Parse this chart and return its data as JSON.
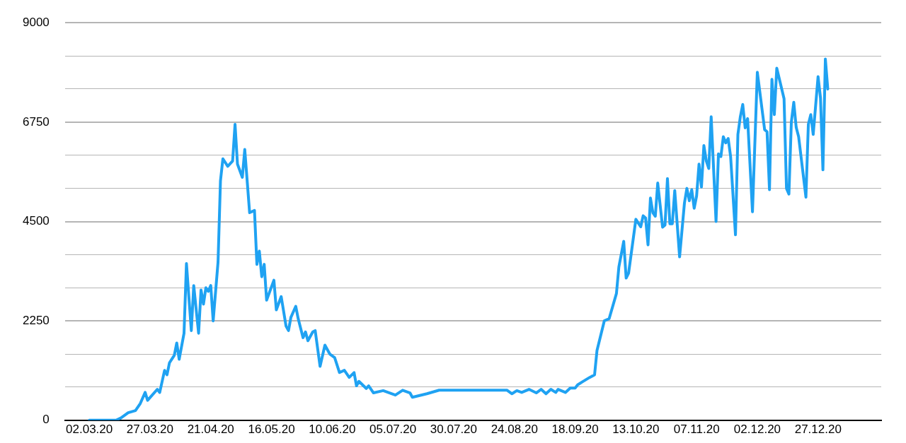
{
  "chart_data": {
    "type": "line",
    "x": [
      "2020-03-02",
      "2020-03-13",
      "2020-03-15",
      "2020-03-18",
      "2020-03-21",
      "2020-03-23",
      "2020-03-25",
      "2020-03-26",
      "2020-03-30",
      "2020-03-31",
      "2020-04-02",
      "2020-04-03",
      "2020-04-04",
      "2020-04-06",
      "2020-04-07",
      "2020-04-08",
      "2020-04-10",
      "2020-04-11",
      "2020-04-13",
      "2020-04-14",
      "2020-04-16",
      "2020-04-17",
      "2020-04-18",
      "2020-04-19",
      "2020-04-20",
      "2020-04-21",
      "2020-04-22",
      "2020-04-24",
      "2020-04-25",
      "2020-04-26",
      "2020-04-28",
      "2020-04-30",
      "2020-05-01",
      "2020-05-02",
      "2020-05-04",
      "2020-05-05",
      "2020-05-07",
      "2020-05-09",
      "2020-05-10",
      "2020-05-11",
      "2020-05-12",
      "2020-05-13",
      "2020-05-14",
      "2020-05-17",
      "2020-05-18",
      "2020-05-20",
      "2020-05-22",
      "2020-05-23",
      "2020-05-24",
      "2020-05-26",
      "2020-05-27",
      "2020-05-29",
      "2020-05-30",
      "2020-05-31",
      "2020-06-02",
      "2020-06-03",
      "2020-06-05",
      "2020-06-07",
      "2020-06-09",
      "2020-06-11",
      "2020-06-13",
      "2020-06-15",
      "2020-06-17",
      "2020-06-19",
      "2020-06-20",
      "2020-06-21",
      "2020-06-24",
      "2020-06-25",
      "2020-06-27",
      "2020-07-01",
      "2020-07-06",
      "2020-07-09",
      "2020-07-12",
      "2020-07-13",
      "2020-07-19",
      "2020-07-24",
      "2020-08-01",
      "2020-08-21",
      "2020-08-23",
      "2020-08-25",
      "2020-08-27",
      "2020-08-30",
      "2020-09-02",
      "2020-09-04",
      "2020-09-06",
      "2020-09-08",
      "2020-09-10",
      "2020-09-11",
      "2020-09-14",
      "2020-09-16",
      "2020-09-18",
      "2020-09-19",
      "2020-09-21",
      "2020-09-24",
      "2020-09-26",
      "2020-09-27",
      "2020-09-30",
      "2020-10-02",
      "2020-10-05",
      "2020-10-06",
      "2020-10-08",
      "2020-10-09",
      "2020-10-10",
      "2020-10-13",
      "2020-10-15",
      "2020-10-16",
      "2020-10-17",
      "2020-10-18",
      "2020-10-19",
      "2020-10-20",
      "2020-10-21",
      "2020-10-22",
      "2020-10-24",
      "2020-10-25",
      "2020-10-26",
      "2020-10-27",
      "2020-10-28",
      "2020-10-29",
      "2020-10-31",
      "2020-11-02",
      "2020-11-03",
      "2020-11-04",
      "2020-11-05",
      "2020-11-06",
      "2020-11-07",
      "2020-11-08",
      "2020-11-09",
      "2020-11-10",
      "2020-11-11",
      "2020-11-12",
      "2020-11-13",
      "2020-11-15",
      "2020-11-16",
      "2020-11-17",
      "2020-11-18",
      "2020-11-19",
      "2020-11-20",
      "2020-11-21",
      "2020-11-23",
      "2020-11-24",
      "2020-11-25",
      "2020-11-26",
      "2020-11-27",
      "2020-11-28",
      "2020-11-30",
      "2020-12-02",
      "2020-12-05",
      "2020-12-06",
      "2020-12-07",
      "2020-12-08",
      "2020-12-09",
      "2020-12-10",
      "2020-12-13",
      "2020-12-14",
      "2020-12-15",
      "2020-12-16",
      "2020-12-17",
      "2020-12-18",
      "2020-12-19",
      "2020-12-22",
      "2020-12-23",
      "2020-12-24",
      "2020-12-25",
      "2020-12-27",
      "2020-12-28",
      "2020-12-29",
      "2020-12-30",
      "2020-12-31"
    ],
    "series": [
      {
        "color": "#1fa2f2",
        "values": [
          0,
          0,
          50,
          170,
          220,
          380,
          630,
          450,
          700,
          630,
          1130,
          1030,
          1300,
          1470,
          1750,
          1380,
          1970,
          3550,
          2030,
          3050,
          1970,
          2950,
          2630,
          3000,
          2920,
          3050,
          2250,
          3580,
          5420,
          5920,
          5750,
          5870,
          6700,
          5800,
          5500,
          6130,
          4700,
          4750,
          3530,
          3830,
          3250,
          3530,
          2720,
          3170,
          2500,
          2800,
          2130,
          2030,
          2330,
          2580,
          2300,
          1870,
          2000,
          1800,
          2000,
          2030,
          1220,
          1700,
          1500,
          1420,
          1080,
          1130,
          970,
          1080,
          780,
          880,
          720,
          780,
          620,
          670,
          570,
          680,
          620,
          520,
          600,
          680,
          680,
          680,
          600,
          670,
          630,
          700,
          620,
          700,
          600,
          700,
          630,
          700,
          630,
          730,
          730,
          800,
          870,
          970,
          1030,
          1580,
          2250,
          2300,
          2870,
          3470,
          4050,
          3220,
          3330,
          4550,
          4380,
          4630,
          4580,
          3970,
          5030,
          4700,
          4620,
          5370,
          4370,
          4420,
          5470,
          4450,
          4450,
          5200,
          3700,
          4920,
          5250,
          4970,
          5220,
          4800,
          5080,
          5800,
          5280,
          6220,
          5870,
          5700,
          6870,
          4500,
          6030,
          5970,
          6420,
          6280,
          6380,
          5970,
          4200,
          6470,
          6870,
          7150,
          6620,
          6830,
          4720,
          7880,
          6580,
          6530,
          5220,
          7720,
          6920,
          7970,
          7280,
          5250,
          5120,
          6750,
          7200,
          6630,
          6420,
          5050,
          6700,
          6920,
          6470,
          7780,
          7300,
          5670,
          8180,
          7500
        ]
      }
    ],
    "xlim": [
      "2020-02-21",
      "2021-01-22"
    ],
    "xticks": [
      {
        "value": "2020-03-02",
        "label": "02.03.20"
      },
      {
        "value": "2020-03-27",
        "label": "27.03.20"
      },
      {
        "value": "2020-04-21",
        "label": "21.04.20"
      },
      {
        "value": "2020-05-16",
        "label": "16.05.20"
      },
      {
        "value": "2020-06-10",
        "label": "10.06.20"
      },
      {
        "value": "2020-07-05",
        "label": "05.07.20"
      },
      {
        "value": "2020-07-30",
        "label": "30.07.20"
      },
      {
        "value": "2020-08-24",
        "label": "24.08.20"
      },
      {
        "value": "2020-09-18",
        "label": "18.09.20"
      },
      {
        "value": "2020-10-13",
        "label": "13.10.20"
      },
      {
        "value": "2020-11-07",
        "label": "07.11.20"
      },
      {
        "value": "2020-12-02",
        "label": "02.12.20"
      },
      {
        "value": "2020-12-27",
        "label": "27.12.20"
      }
    ],
    "ylim": [
      0,
      9000
    ],
    "yticks": [
      0,
      {
        "value": 750,
        "label": null
      },
      {
        "value": 1500,
        "label": null
      },
      2250,
      {
        "value": 3000,
        "label": null
      },
      {
        "value": 3750,
        "label": null
      },
      4500,
      {
        "value": 5250,
        "label": null
      },
      {
        "value": 6000,
        "label": null
      },
      6750,
      {
        "value": 7500,
        "label": null
      },
      {
        "value": 8250,
        "label": null
      },
      9000
    ],
    "grid": "y",
    "legend": false,
    "marker": "none",
    "line_style": "solid"
  }
}
